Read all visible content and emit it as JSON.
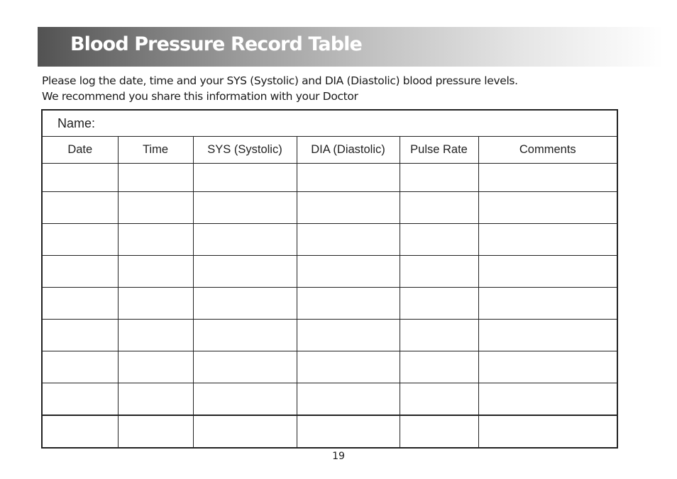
{
  "header": {
    "title": "Blood Pressure Record Table"
  },
  "intro": {
    "line1": "Please log the date, time and your SYS (Systolic) and DIA (Diastolic) blood pressure levels.",
    "line2": "We recommend you share this information with your Doctor"
  },
  "table": {
    "name_label": "Name:",
    "columns": [
      "Date",
      "Time",
      "SYS (Systolic)",
      "DIA (Diastolic)",
      "Pulse Rate",
      "Comments"
    ],
    "rows": [
      [
        "",
        "",
        "",
        "",
        "",
        ""
      ],
      [
        "",
        "",
        "",
        "",
        "",
        ""
      ],
      [
        "",
        "",
        "",
        "",
        "",
        ""
      ],
      [
        "",
        "",
        "",
        "",
        "",
        ""
      ],
      [
        "",
        "",
        "",
        "",
        "",
        ""
      ],
      [
        "",
        "",
        "",
        "",
        "",
        ""
      ],
      [
        "",
        "",
        "",
        "",
        "",
        ""
      ],
      [
        "",
        "",
        "",
        "",
        "",
        ""
      ],
      [
        "",
        "",
        "",
        "",
        "",
        ""
      ]
    ]
  },
  "footer": {
    "page_number": "19"
  }
}
